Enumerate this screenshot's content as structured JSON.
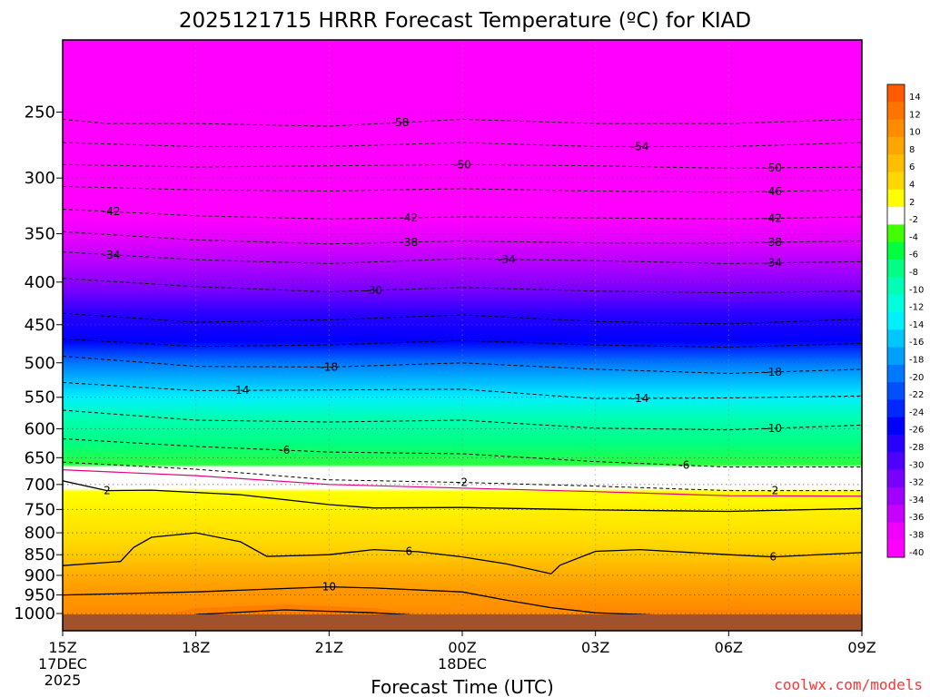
{
  "title": "2025121715 HRRR Forecast Temperature (ºC) for KIAD",
  "credit": "coolwx.com/models",
  "chart_data": {
    "type": "heatmap",
    "title": "2025121715 HRRR Forecast Temperature (ºC) for KIAD",
    "xlabel": "Forecast Time (UTC)",
    "ylabel": "",
    "y_scale": "log",
    "y_reversed": true,
    "y_ticks": [
      250,
      300,
      350,
      400,
      450,
      500,
      550,
      600,
      650,
      700,
      750,
      800,
      850,
      900,
      950,
      1000
    ],
    "x_ticks": [
      {
        "label": "15Z",
        "sub": [
          "17DEC",
          "2025"
        ]
      },
      {
        "label": "18Z",
        "sub": []
      },
      {
        "label": "21Z",
        "sub": []
      },
      {
        "label": "00Z",
        "sub": [
          "18DEC"
        ]
      },
      {
        "label": "03Z",
        "sub": []
      },
      {
        "label": "06Z",
        "sub": []
      },
      {
        "label": "09Z",
        "sub": []
      }
    ],
    "hours": [
      15,
      18,
      21,
      24,
      27,
      30,
      33
    ],
    "colorbar": {
      "labels": [
        "14",
        "12",
        "10",
        "8",
        "6",
        "4",
        "2",
        "-2",
        "-4",
        "-6",
        "-8",
        "-10",
        "-12",
        "-14",
        "-16",
        "-18",
        "-20",
        "-22",
        "-24",
        "-26",
        "-28",
        "-30",
        "-32",
        "-34",
        "-36",
        "-38",
        "-40"
      ],
      "colors": [
        "#ff5a00",
        "#ff7300",
        "#ff8c00",
        "#ffa500",
        "#ffbe00",
        "#ffd700",
        "#ffff00",
        "#ffffff",
        "#41ff00",
        "#00ff3c",
        "#00ff82",
        "#00ffb4",
        "#00ffdc",
        "#00f0ff",
        "#00c8ff",
        "#00a0ff",
        "#0078ff",
        "#0050ff",
        "#0028ff",
        "#0000ff",
        "#2800ff",
        "#5000ff",
        "#7800ff",
        "#a000ff",
        "#c800ff",
        "#f000ff",
        "#ff00ff"
      ]
    },
    "isotherms": [
      {
        "value": -58,
        "points": [
          [
            15,
            255
          ],
          [
            16,
            258
          ],
          [
            18,
            258
          ],
          [
            21,
            260
          ],
          [
            24,
            255
          ],
          [
            27,
            258
          ],
          [
            30,
            258
          ],
          [
            33,
            255
          ]
        ],
        "labels": [
          [
            22.6,
            "-58"
          ]
        ]
      },
      {
        "value": -54,
        "points": [
          [
            15,
            272
          ],
          [
            18,
            275
          ],
          [
            21,
            275
          ],
          [
            24,
            272
          ],
          [
            27,
            275
          ],
          [
            30,
            275
          ],
          [
            33,
            272
          ]
        ],
        "labels": [
          [
            28,
            "-54"
          ]
        ]
      },
      {
        "value": -50,
        "points": [
          [
            15,
            289
          ],
          [
            18,
            291
          ],
          [
            21,
            290
          ],
          [
            24,
            289
          ],
          [
            27,
            290
          ],
          [
            30,
            292
          ],
          [
            33,
            291
          ]
        ],
        "labels": [
          [
            24,
            "-50"
          ],
          [
            31,
            "-50"
          ]
        ]
      },
      {
        "value": -46,
        "points": [
          [
            15,
            307
          ],
          [
            18,
            310
          ],
          [
            21,
            311
          ],
          [
            24,
            309
          ],
          [
            27,
            311
          ],
          [
            30,
            312
          ],
          [
            33,
            310
          ]
        ],
        "labels": [
          [
            31,
            "-46"
          ]
        ]
      },
      {
        "value": -42,
        "points": [
          [
            15,
            327
          ],
          [
            18,
            333
          ],
          [
            21,
            336
          ],
          [
            24,
            334
          ],
          [
            27,
            335
          ],
          [
            30,
            336
          ],
          [
            33,
            334
          ]
        ],
        "labels": [
          [
            16.1,
            "-42"
          ],
          [
            22.8,
            "-42"
          ],
          [
            31,
            "-42"
          ]
        ]
      },
      {
        "value": -38,
        "points": [
          [
            15,
            348
          ],
          [
            18,
            356
          ],
          [
            21,
            360
          ],
          [
            24,
            357
          ],
          [
            27,
            359
          ],
          [
            30,
            359
          ],
          [
            33,
            357
          ]
        ],
        "labels": [
          [
            22.8,
            "-38"
          ],
          [
            31,
            "-38"
          ]
        ]
      },
      {
        "value": -34,
        "points": [
          [
            15,
            368
          ],
          [
            18,
            376
          ],
          [
            21,
            380
          ],
          [
            24,
            375
          ],
          [
            27,
            377
          ],
          [
            30,
            380
          ],
          [
            33,
            378
          ]
        ],
        "labels": [
          [
            16.1,
            "-34"
          ],
          [
            25,
            "-34"
          ],
          [
            31,
            "-34"
          ]
        ]
      },
      {
        "value": -30,
        "points": [
          [
            15,
            396
          ],
          [
            18,
            405
          ],
          [
            21,
            411
          ],
          [
            24,
            406
          ],
          [
            27,
            410
          ],
          [
            30,
            412
          ],
          [
            33,
            410
          ]
        ],
        "labels": [
          [
            22,
            "-30"
          ]
        ]
      },
      {
        "value": -26,
        "points": [
          [
            15,
            436
          ],
          [
            18,
            447
          ],
          [
            21,
            444
          ],
          [
            24,
            438
          ],
          [
            27,
            446
          ],
          [
            30,
            449
          ],
          [
            33,
            443
          ]
        ],
        "labels": []
      },
      {
        "value": -22,
        "points": [
          [
            15,
            468
          ],
          [
            18,
            478
          ],
          [
            21,
            476
          ],
          [
            24,
            470
          ],
          [
            27,
            476
          ],
          [
            30,
            479
          ],
          [
            33,
            474
          ]
        ],
        "labels": []
      },
      {
        "value": -18,
        "points": [
          [
            15,
            491
          ],
          [
            18,
            505
          ],
          [
            21,
            506
          ],
          [
            24,
            500
          ],
          [
            27,
            509
          ],
          [
            30,
            515
          ],
          [
            33,
            509
          ]
        ],
        "labels": [
          [
            21,
            "-18"
          ],
          [
            31,
            "-18"
          ]
        ]
      },
      {
        "value": -14,
        "points": [
          [
            15,
            528
          ],
          [
            18,
            540
          ],
          [
            21,
            539
          ],
          [
            24,
            538
          ],
          [
            27,
            552
          ],
          [
            30,
            551
          ],
          [
            33,
            548
          ]
        ],
        "labels": [
          [
            19,
            "-14"
          ],
          [
            28,
            "-14"
          ]
        ]
      },
      {
        "value": -10,
        "points": [
          [
            15,
            570
          ],
          [
            18,
            586
          ],
          [
            21,
            589
          ],
          [
            24,
            586
          ],
          [
            27,
            599
          ],
          [
            30,
            602
          ],
          [
            33,
            594
          ]
        ],
        "labels": [
          [
            31,
            "-10"
          ]
        ]
      },
      {
        "value": -6,
        "points": [
          [
            15,
            617
          ],
          [
            18,
            630
          ],
          [
            21,
            640
          ],
          [
            24,
            643
          ],
          [
            27,
            657
          ],
          [
            30,
            667
          ],
          [
            33,
            667
          ]
        ],
        "labels": [
          [
            20,
            "-6"
          ],
          [
            29,
            "-6"
          ]
        ]
      },
      {
        "value": -2,
        "points": [
          [
            15,
            658
          ],
          [
            18,
            671
          ],
          [
            21,
            691
          ],
          [
            24,
            696
          ],
          [
            27,
            703
          ],
          [
            30,
            712
          ],
          [
            33,
            712
          ]
        ],
        "labels": [
          [
            24,
            "-2"
          ],
          [
            31,
            "-2"
          ]
        ]
      }
    ],
    "solid_contours": [
      {
        "value": 2,
        "points": [
          [
            15,
            693
          ],
          [
            16,
            712
          ],
          [
            17,
            711
          ],
          [
            19,
            720
          ],
          [
            21,
            740
          ],
          [
            22,
            747
          ],
          [
            24,
            746
          ],
          [
            27,
            751
          ],
          [
            30,
            754
          ],
          [
            33,
            748
          ]
        ],
        "labels": [
          [
            16,
            "2"
          ]
        ]
      },
      {
        "value": 6,
        "points": [
          [
            15,
            876
          ],
          [
            16.3,
            866
          ],
          [
            16.6,
            833
          ],
          [
            17,
            810
          ],
          [
            18,
            800
          ],
          [
            19,
            820
          ],
          [
            19.6,
            854
          ],
          [
            21,
            850
          ],
          [
            22,
            838
          ],
          [
            23,
            843
          ],
          [
            24,
            855
          ],
          [
            25,
            872
          ],
          [
            26,
            896
          ],
          [
            26.2,
            875
          ],
          [
            27,
            842
          ],
          [
            28,
            838
          ],
          [
            30,
            850
          ],
          [
            31,
            855
          ],
          [
            33,
            845
          ]
        ],
        "labels": [
          [
            22.8,
            "6"
          ],
          [
            31,
            "6"
          ]
        ]
      },
      {
        "value": 10,
        "points": [
          [
            15,
            950
          ],
          [
            18,
            942
          ],
          [
            21,
            929
          ],
          [
            22,
            932
          ],
          [
            24,
            942
          ],
          [
            25,
            964
          ],
          [
            26,
            984
          ],
          [
            27,
            998
          ],
          [
            28.5,
            1005
          ]
        ],
        "labels": [
          [
            21,
            "10"
          ]
        ]
      },
      {
        "value": 14,
        "points": [
          [
            18,
            1003
          ],
          [
            20,
            990
          ],
          [
            22,
            998
          ],
          [
            23,
            1005
          ]
        ],
        "labels": []
      }
    ]
  }
}
